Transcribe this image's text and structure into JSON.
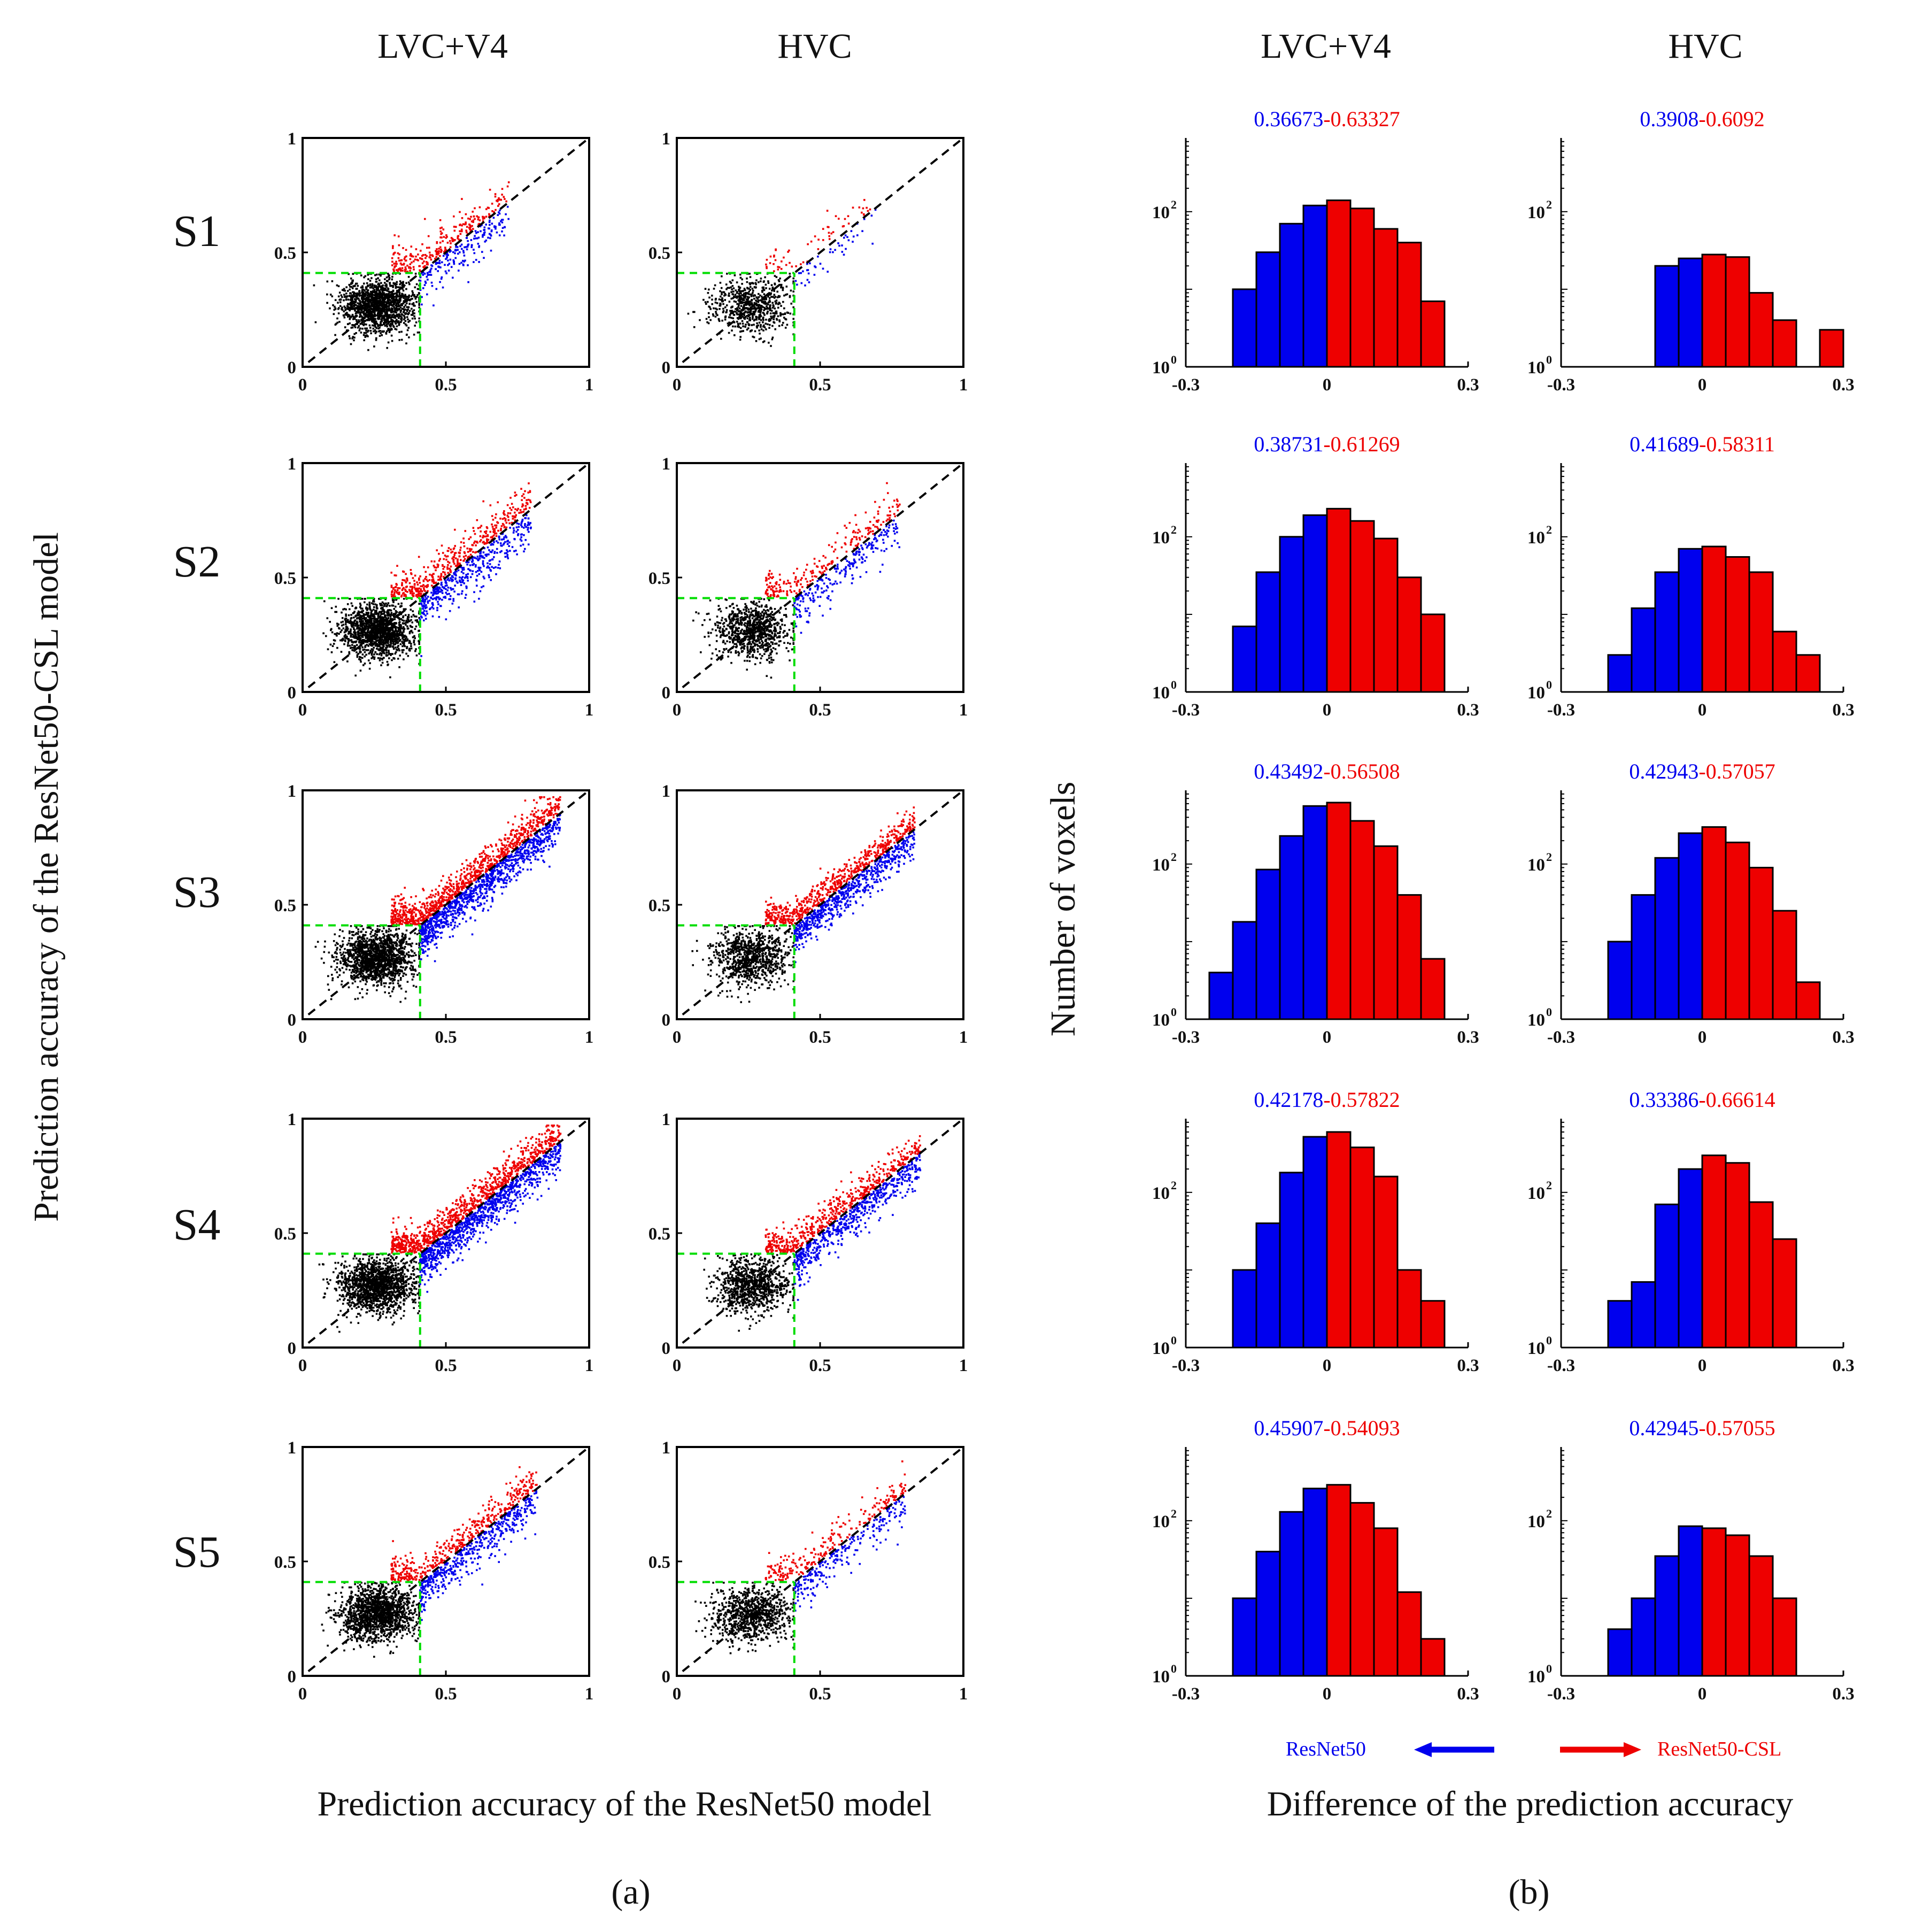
{
  "panel_a": {
    "col_titles": [
      "LVC+V4",
      "HVC"
    ],
    "row_labels": [
      "S1",
      "S2",
      "S3",
      "S4",
      "S5"
    ],
    "ylabel": "Prediction accuracy of the ResNet50-CSL model",
    "xlabel": "Prediction accuracy of the ResNet50 model",
    "caption": "(a)"
  },
  "panel_b": {
    "col_titles": [
      "LVC+V4",
      "HVC"
    ],
    "ylabel": "Number of voxels",
    "xlabel": "Difference of the prediction accuracy",
    "caption": "(b)",
    "legend": {
      "left": "ResNet50",
      "right": "ResNet50-CSL"
    }
  },
  "colors": {
    "blue": "#0000ee",
    "red": "#ee0000",
    "black": "#000000",
    "green": "#00dd00"
  },
  "chart_data": [
    {
      "type": "scatter",
      "title": "Scatter plots (S1-S5, LVC+V4 and HVC)",
      "xlabel": "Prediction accuracy of the ResNet50 model",
      "ylabel": "Prediction accuracy of the ResNet50-CSL model",
      "xlim": [
        0,
        1
      ],
      "ylim": [
        0,
        1
      ],
      "xticks": [
        "0",
        "0.5",
        "1"
      ],
      "yticks": [
        "0",
        "0.5",
        "1"
      ],
      "threshold": 0.41,
      "plots": [
        {
          "subject": "S1",
          "region": "LVC+V4",
          "n_black": 1500,
          "n_red": 260,
          "n_blue": 190,
          "spread": 0.055,
          "max": 0.72,
          "seed": 11
        },
        {
          "subject": "S1",
          "region": "HVC",
          "n_black": 700,
          "n_red": 60,
          "n_blue": 45,
          "spread": 0.05,
          "max": 0.7,
          "seed": 12
        },
        {
          "subject": "S2",
          "region": "LVC+V4",
          "n_black": 1500,
          "n_red": 430,
          "n_blue": 420,
          "spread": 0.06,
          "max": 0.8,
          "seed": 21
        },
        {
          "subject": "S2",
          "region": "HVC",
          "n_black": 900,
          "n_red": 230,
          "n_blue": 230,
          "spread": 0.055,
          "max": 0.78,
          "seed": 22
        },
        {
          "subject": "S3",
          "region": "LVC+V4",
          "n_black": 1500,
          "n_red": 900,
          "n_blue": 950,
          "spread": 0.05,
          "max": 0.9,
          "seed": 31
        },
        {
          "subject": "S3",
          "region": "HVC",
          "n_black": 900,
          "n_red": 600,
          "n_blue": 620,
          "spread": 0.045,
          "max": 0.83,
          "seed": 32
        },
        {
          "subject": "S4",
          "region": "LVC+V4",
          "n_black": 1500,
          "n_red": 900,
          "n_blue": 950,
          "spread": 0.05,
          "max": 0.9,
          "seed": 41
        },
        {
          "subject": "S4",
          "region": "HVC",
          "n_black": 900,
          "n_red": 520,
          "n_blue": 540,
          "spread": 0.05,
          "max": 0.85,
          "seed": 42
        },
        {
          "subject": "S5",
          "region": "LVC+V4",
          "n_black": 1500,
          "n_red": 420,
          "n_blue": 450,
          "spread": 0.05,
          "max": 0.82,
          "seed": 51
        },
        {
          "subject": "S5",
          "region": "HVC",
          "n_black": 900,
          "n_red": 230,
          "n_blue": 230,
          "spread": 0.05,
          "max": 0.8,
          "seed": 52
        }
      ]
    },
    {
      "type": "bar",
      "title": "Histograms of accuracy difference (log scale)",
      "xlabel": "Difference of the prediction accuracy",
      "ylabel": "Number of voxels",
      "xlim": [
        -0.3,
        0.3
      ],
      "xticks": [
        "-0.3",
        "0",
        "0.3"
      ],
      "log_ylim": [
        0,
        2.95
      ],
      "bin_width": 0.05,
      "plots": [
        {
          "subject": "S1",
          "region": "LVC+V4",
          "prop_blue": "0.36673",
          "prop_red": "0.63327",
          "ylim_exp": 2.95,
          "bins": [
            {
              "left": -0.2,
              "count": 10
            },
            {
              "left": -0.15,
              "count": 30
            },
            {
              "left": -0.1,
              "count": 70
            },
            {
              "left": -0.05,
              "count": 120
            },
            {
              "left": 0.0,
              "count": 140
            },
            {
              "left": 0.05,
              "count": 110
            },
            {
              "left": 0.1,
              "count": 60
            },
            {
              "left": 0.15,
              "count": 40
            },
            {
              "left": 0.2,
              "count": 7
            }
          ]
        },
        {
          "subject": "S1",
          "region": "HVC",
          "prop_blue": "0.3908",
          "prop_red": "0.6092",
          "ylim_exp": 2.95,
          "bins": [
            {
              "left": -0.1,
              "count": 20
            },
            {
              "left": -0.05,
              "count": 25
            },
            {
              "left": 0.0,
              "count": 28
            },
            {
              "left": 0.05,
              "count": 26
            },
            {
              "left": 0.1,
              "count": 9
            },
            {
              "left": 0.15,
              "count": 4
            },
            {
              "left": 0.25,
              "count": 3
            }
          ]
        },
        {
          "subject": "S2",
          "region": "LVC+V4",
          "prop_blue": "0.38731",
          "prop_red": "0.61269",
          "ylim_exp": 2.95,
          "bins": [
            {
              "left": -0.2,
              "count": 7
            },
            {
              "left": -0.15,
              "count": 35
            },
            {
              "left": -0.1,
              "count": 100
            },
            {
              "left": -0.05,
              "count": 190
            },
            {
              "left": 0.0,
              "count": 230
            },
            {
              "left": 0.05,
              "count": 160
            },
            {
              "left": 0.1,
              "count": 95
            },
            {
              "left": 0.15,
              "count": 30
            },
            {
              "left": 0.2,
              "count": 10
            }
          ]
        },
        {
          "subject": "S2",
          "region": "HVC",
          "prop_blue": "0.41689",
          "prop_red": "0.58311",
          "ylim_exp": 2.95,
          "bins": [
            {
              "left": -0.2,
              "count": 3
            },
            {
              "left": -0.15,
              "count": 12
            },
            {
              "left": -0.1,
              "count": 35
            },
            {
              "left": -0.05,
              "count": 70
            },
            {
              "left": 0.0,
              "count": 75
            },
            {
              "left": 0.05,
              "count": 55
            },
            {
              "left": 0.1,
              "count": 35
            },
            {
              "left": 0.15,
              "count": 6
            },
            {
              "left": 0.2,
              "count": 3
            }
          ]
        },
        {
          "subject": "S3",
          "region": "LVC+V4",
          "prop_blue": "0.43492",
          "prop_red": "0.56508",
          "ylim_exp": 2.95,
          "bins": [
            {
              "left": -0.25,
              "count": 4
            },
            {
              "left": -0.2,
              "count": 18
            },
            {
              "left": -0.15,
              "count": 85
            },
            {
              "left": -0.1,
              "count": 230
            },
            {
              "left": -0.05,
              "count": 560
            },
            {
              "left": 0.0,
              "count": 620
            },
            {
              "left": 0.05,
              "count": 360
            },
            {
              "left": 0.1,
              "count": 170
            },
            {
              "left": 0.15,
              "count": 40
            },
            {
              "left": 0.2,
              "count": 6
            }
          ]
        },
        {
          "subject": "S3",
          "region": "HVC",
          "prop_blue": "0.42943",
          "prop_red": "0.57057",
          "ylim_exp": 2.95,
          "bins": [
            {
              "left": -0.2,
              "count": 10
            },
            {
              "left": -0.15,
              "count": 40
            },
            {
              "left": -0.1,
              "count": 120
            },
            {
              "left": -0.05,
              "count": 250
            },
            {
              "left": 0.0,
              "count": 300
            },
            {
              "left": 0.05,
              "count": 190
            },
            {
              "left": 0.1,
              "count": 90
            },
            {
              "left": 0.15,
              "count": 25
            },
            {
              "left": 0.2,
              "count": 3
            }
          ]
        },
        {
          "subject": "S4",
          "region": "LVC+V4",
          "prop_blue": "0.42178",
          "prop_red": "0.57822",
          "ylim_exp": 2.95,
          "bins": [
            {
              "left": -0.2,
              "count": 10
            },
            {
              "left": -0.15,
              "count": 40
            },
            {
              "left": -0.1,
              "count": 180
            },
            {
              "left": -0.05,
              "count": 520
            },
            {
              "left": 0.0,
              "count": 600
            },
            {
              "left": 0.05,
              "count": 380
            },
            {
              "left": 0.1,
              "count": 160
            },
            {
              "left": 0.15,
              "count": 10
            },
            {
              "left": 0.2,
              "count": 4
            }
          ]
        },
        {
          "subject": "S4",
          "region": "HVC",
          "prop_blue": "0.33386",
          "prop_red": "0.66614",
          "ylim_exp": 2.95,
          "bins": [
            {
              "left": -0.2,
              "count": 4
            },
            {
              "left": -0.15,
              "count": 7
            },
            {
              "left": -0.1,
              "count": 70
            },
            {
              "left": -0.05,
              "count": 200
            },
            {
              "left": 0.0,
              "count": 300
            },
            {
              "left": 0.05,
              "count": 240
            },
            {
              "left": 0.1,
              "count": 75
            },
            {
              "left": 0.15,
              "count": 25
            }
          ]
        },
        {
          "subject": "S5",
          "region": "LVC+V4",
          "prop_blue": "0.45907",
          "prop_red": "0.54093",
          "ylim_exp": 2.95,
          "bins": [
            {
              "left": -0.2,
              "count": 10
            },
            {
              "left": -0.15,
              "count": 40
            },
            {
              "left": -0.1,
              "count": 130
            },
            {
              "left": -0.05,
              "count": 260
            },
            {
              "left": 0.0,
              "count": 290
            },
            {
              "left": 0.05,
              "count": 170
            },
            {
              "left": 0.1,
              "count": 80
            },
            {
              "left": 0.15,
              "count": 12
            },
            {
              "left": 0.2,
              "count": 3
            }
          ]
        },
        {
          "subject": "S5",
          "region": "HVC",
          "prop_blue": "0.42945",
          "prop_red": "0.57055",
          "ylim_exp": 2.95,
          "bins": [
            {
              "left": -0.2,
              "count": 4
            },
            {
              "left": -0.15,
              "count": 10
            },
            {
              "left": -0.1,
              "count": 35
            },
            {
              "left": -0.05,
              "count": 85
            },
            {
              "left": 0.0,
              "count": 80
            },
            {
              "left": 0.05,
              "count": 65
            },
            {
              "left": 0.1,
              "count": 35
            },
            {
              "left": 0.15,
              "count": 10
            }
          ]
        }
      ]
    }
  ]
}
